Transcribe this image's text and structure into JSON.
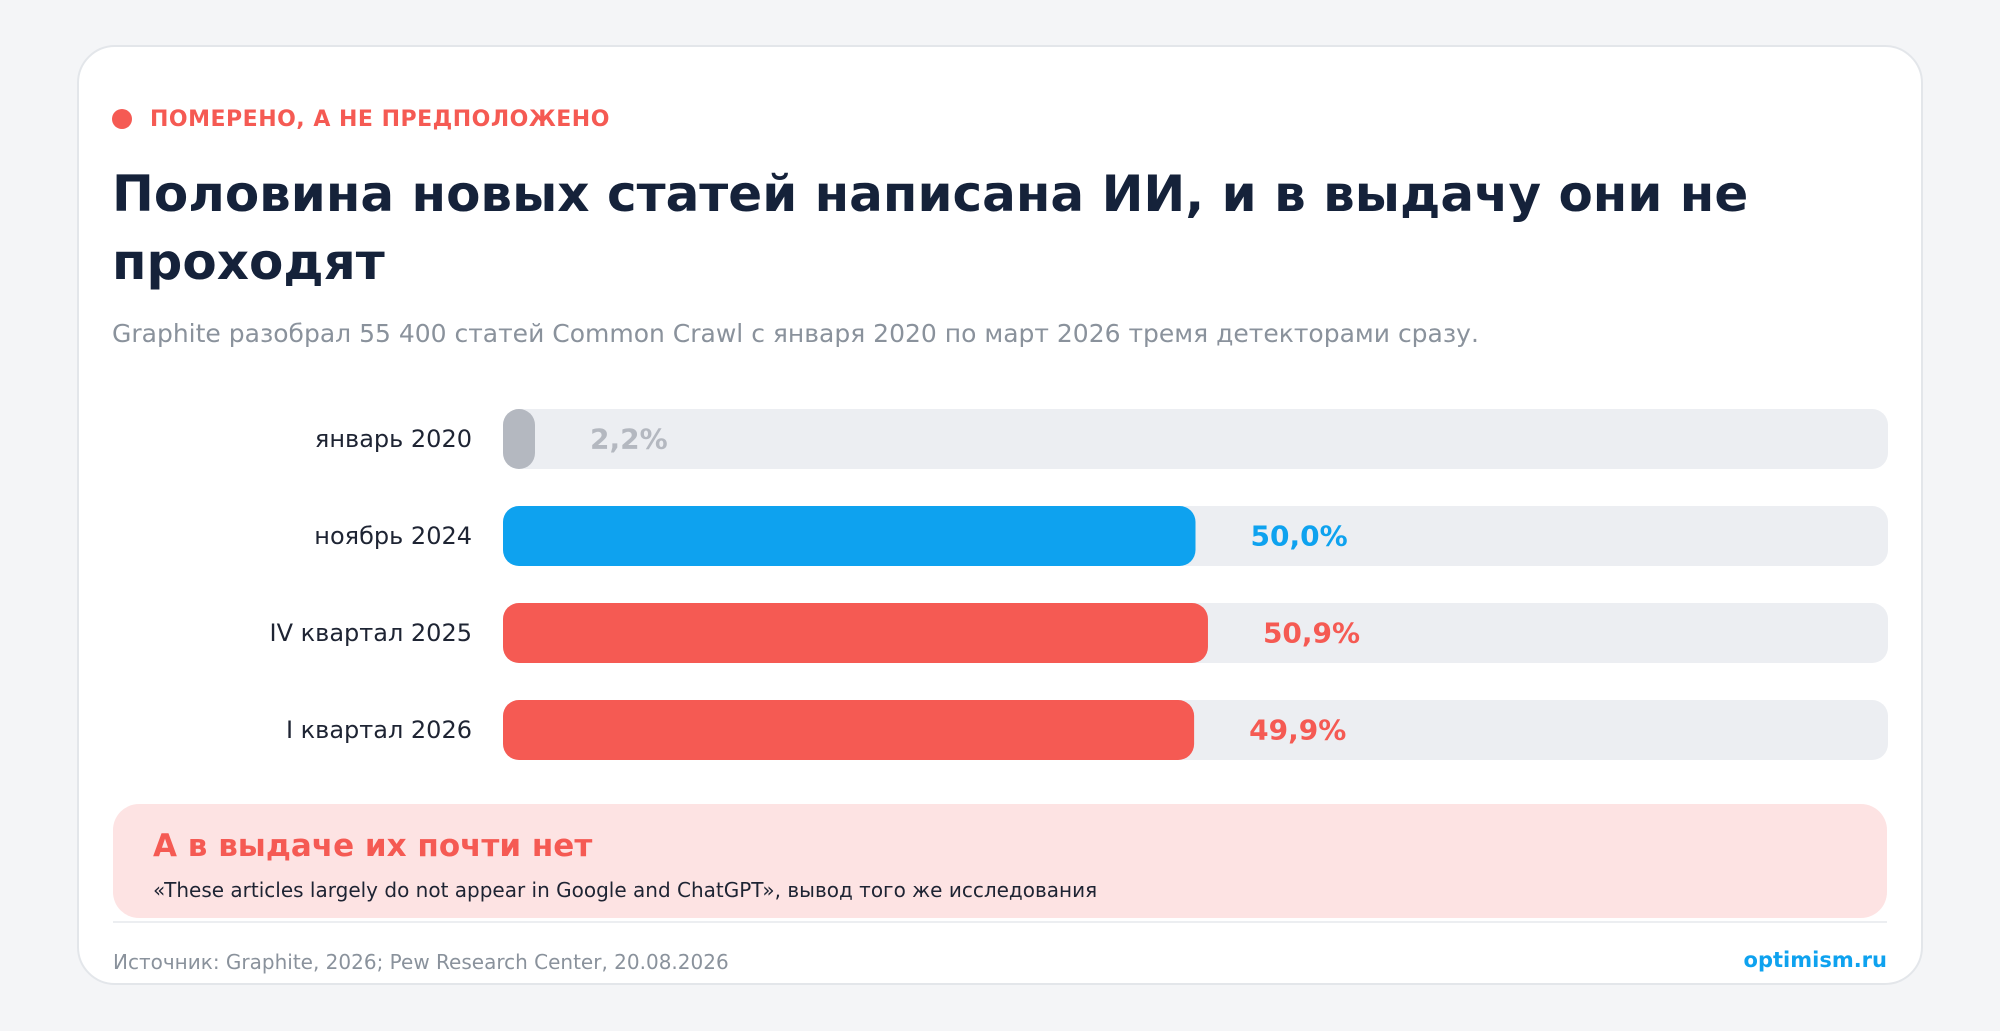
{
  "kicker": "ПОМЕРЕНО, А НЕ ПРЕДПОЛОЖЕНО",
  "title": "Половина новых статей написана ИИ, и в выдачу они не проходят",
  "subtitle": "Graphite разобрал 55 400 статей Common Crawl с января 2020 по март 2026 тремя детекторами сразу.",
  "chart_data": {
    "type": "bar",
    "orientation": "horizontal",
    "categories": [
      "январь 2020",
      "ноябрь 2024",
      "IV квартал 2025",
      "I квартал 2026"
    ],
    "values": [
      2.2,
      50.0,
      50.9,
      49.9
    ],
    "value_labels": [
      "2,2%",
      "50,0%",
      "50,9%",
      "49,9%"
    ],
    "xlim": [
      0,
      100
    ],
    "bar_colors": [
      "#b4b8c0",
      "#0ea2ef",
      "#f55a53",
      "#f55a53"
    ],
    "label_colors": [
      "#b4b8c0",
      "#0ea2ef",
      "#f55a53",
      "#f55a53"
    ],
    "track_color": "#eceef2"
  },
  "callout": {
    "title": "А в выдаче их почти нет",
    "text": "«These articles largely do not appear in Google and ChatGPT», вывод того же исследования"
  },
  "footer": {
    "source": "Источник: Graphite, 2026; Pew Research Center, 20.08.2026",
    "brand": "optimism.ru"
  },
  "colors": {
    "accent_red": "#f55a53",
    "accent_blue": "#0ea2ef",
    "title": "#15223a",
    "muted": "#8a929c"
  }
}
